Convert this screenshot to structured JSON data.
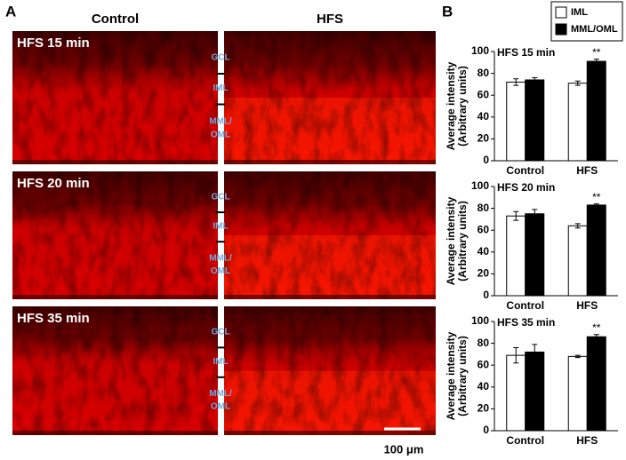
{
  "panel_a": {
    "label": "A",
    "columns": [
      "Control",
      "HFS"
    ],
    "rows": [
      {
        "label": "HFS 15 min",
        "layers": [
          "GCL",
          "IML",
          "MML/",
          "OML"
        ]
      },
      {
        "label": "HFS 20 min",
        "layers": [
          "GCL",
          "IML",
          "MML/",
          "OML"
        ]
      },
      {
        "label": "HFS 35 min",
        "layers": [
          "GCL",
          "IML",
          "MML/",
          "OML"
        ]
      }
    ],
    "scale_bar": "100 μm"
  },
  "panel_b": {
    "label": "B",
    "legend": {
      "names": [
        "IML",
        "MML/OML"
      ],
      "colors": [
        "#ffffff",
        "#000000"
      ]
    }
  },
  "chart_data": [
    {
      "type": "bar",
      "title": "HFS 15 min",
      "ylabel": [
        "Average intensity",
        "(Arbitrary units)"
      ],
      "categories": [
        "Control",
        "HFS"
      ],
      "series": [
        {
          "values": [
            72,
            71
          ],
          "errors": [
            3,
            2
          ]
        },
        {
          "values": [
            74,
            91
          ],
          "errors": [
            2,
            2
          ]
        }
      ],
      "ylim": [
        0,
        100
      ],
      "yticks": [
        0,
        20,
        40,
        60,
        80,
        100
      ],
      "annotation": "**"
    },
    {
      "type": "bar",
      "title": "HFS 20 min",
      "ylabel": [
        "Average intensity",
        "(Arbitrary units)"
      ],
      "categories": [
        "Control",
        "HFS"
      ],
      "series": [
        {
          "values": [
            73,
            64
          ],
          "errors": [
            4,
            2
          ]
        },
        {
          "values": [
            75,
            83
          ],
          "errors": [
            4,
            1
          ]
        }
      ],
      "ylim": [
        0,
        100
      ],
      "yticks": [
        0,
        20,
        40,
        60,
        80,
        100
      ],
      "annotation": "**"
    },
    {
      "type": "bar",
      "title": "HFS 35 min",
      "ylabel": [
        "Average intensity",
        "(Arbitrary units)"
      ],
      "categories": [
        "Control",
        "HFS"
      ],
      "series": [
        {
          "values": [
            69,
            68
          ],
          "errors": [
            7,
            1
          ]
        },
        {
          "values": [
            72,
            86
          ],
          "errors": [
            7,
            2
          ]
        }
      ],
      "ylim": [
        0,
        100
      ],
      "yticks": [
        0,
        20,
        40,
        60,
        80,
        100
      ],
      "annotation": "**"
    }
  ]
}
